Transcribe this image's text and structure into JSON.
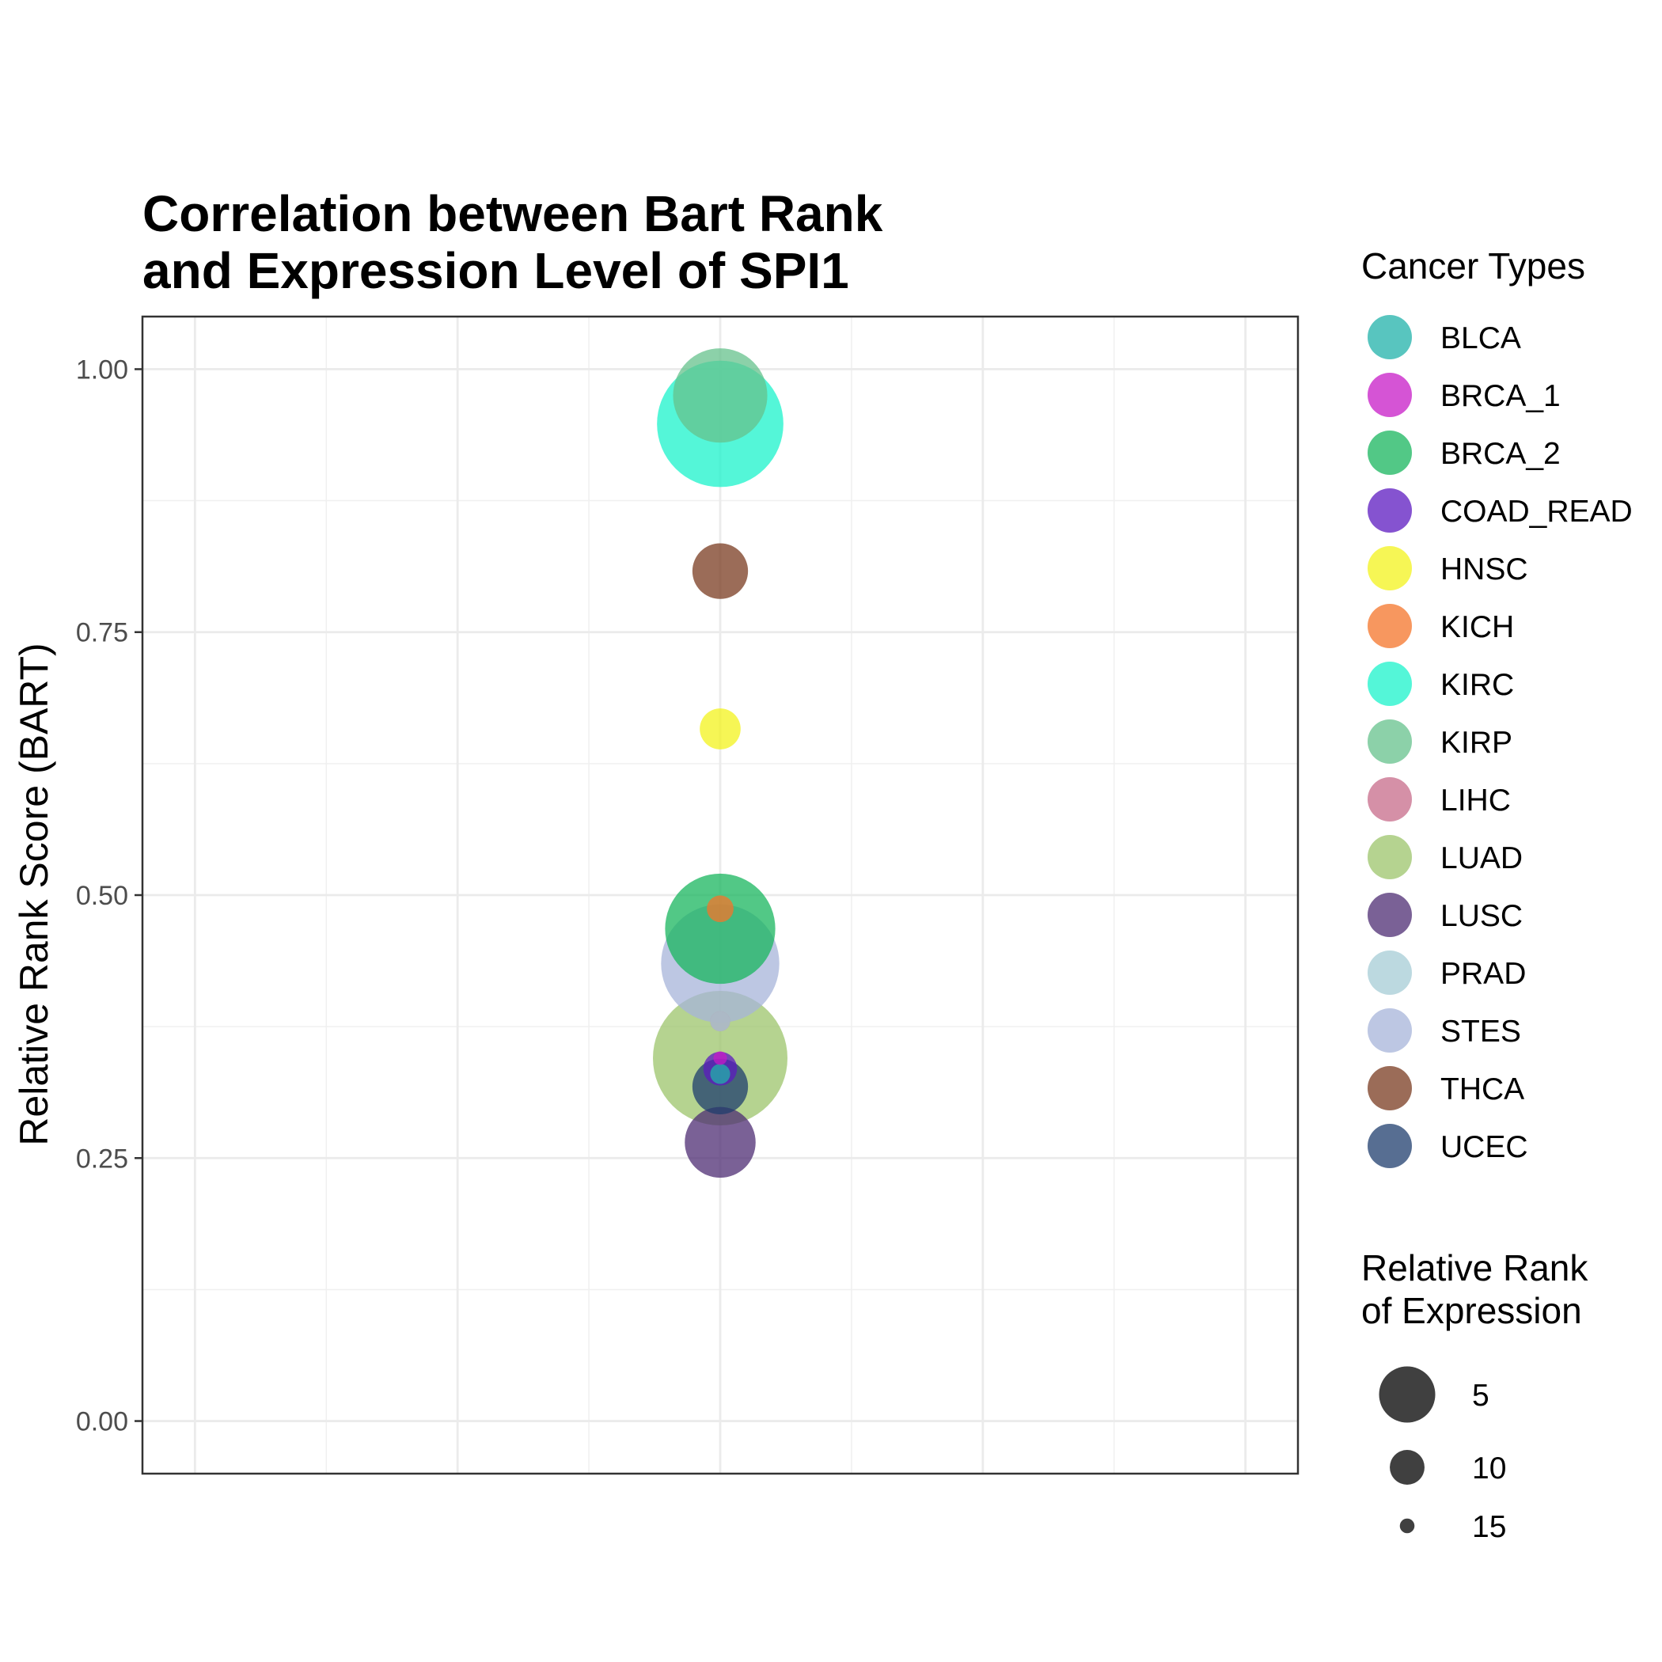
{
  "chart_data": {
    "type": "scatter",
    "title_lines": [
      "Correlation between Bart Rank",
      "and Expression Level of SPI1"
    ],
    "xlabel": "",
    "ylabel": "Relative Rank Score (BART)",
    "ylim": [
      -0.05,
      1.05
    ],
    "y_ticks": [
      0.0,
      0.25,
      0.5,
      0.75,
      1.0
    ],
    "y_tick_labels": [
      "0.00",
      "0.25",
      "0.50",
      "0.75",
      "1.00"
    ],
    "x_ticks_shown": false,
    "grid": true,
    "point_alpha": 0.75,
    "legend_color_title": "Cancer Types",
    "legend_size_title_lines": [
      "Relative Rank",
      "of Expression"
    ],
    "legend_size_values": [
      5,
      10,
      15
    ],
    "legend_size_labels": [
      "5",
      "10",
      "15"
    ],
    "legend_placement": "right",
    "series": [
      {
        "name": "BLCA",
        "color": "#20B2AA",
        "y": 0.33,
        "expr_rank": 16
      },
      {
        "name": "BRCA_1",
        "color": "#C71BC7",
        "y": 0.345,
        "expr_rank": 17
      },
      {
        "name": "BRCA_2",
        "color": "#18B55E",
        "y": 0.468,
        "expr_rank": 4
      },
      {
        "name": "COAD_READ",
        "color": "#5C19C0",
        "y": 0.335,
        "expr_rank": 14
      },
      {
        "name": "HNSC",
        "color": "#F3F31C",
        "y": 0.658,
        "expr_rank": 13
      },
      {
        "name": "KICH",
        "color": "#F4742A",
        "y": 0.487,
        "expr_rank": 15
      },
      {
        "name": "KIRC",
        "color": "#1BF3CB",
        "y": 0.948,
        "expr_rank": 2
      },
      {
        "name": "KIRP",
        "color": "#66C18C",
        "y": 0.975,
        "expr_rank": 6
      },
      {
        "name": "LIHC",
        "color": "#C76B8A",
        "y": 0.38,
        "expr_rank": 16
      },
      {
        "name": "LUAD",
        "color": "#9CC46B",
        "y": 0.345,
        "expr_rank": 1
      },
      {
        "name": "LUSC",
        "color": "#4E2C73",
        "y": 0.265,
        "expr_rank": 9
      },
      {
        "name": "PRAD",
        "color": "#A6CCD6",
        "y": 0.38,
        "expr_rank": 16
      },
      {
        "name": "STES",
        "color": "#A7B4D9",
        "y": 0.435,
        "expr_rank": 3
      },
      {
        "name": "THCA",
        "color": "#7A3B20",
        "y": 0.808,
        "expr_rank": 11
      },
      {
        "name": "UCEC",
        "color": "#1F3D6E",
        "y": 0.318,
        "expr_rank": 11
      }
    ]
  }
}
